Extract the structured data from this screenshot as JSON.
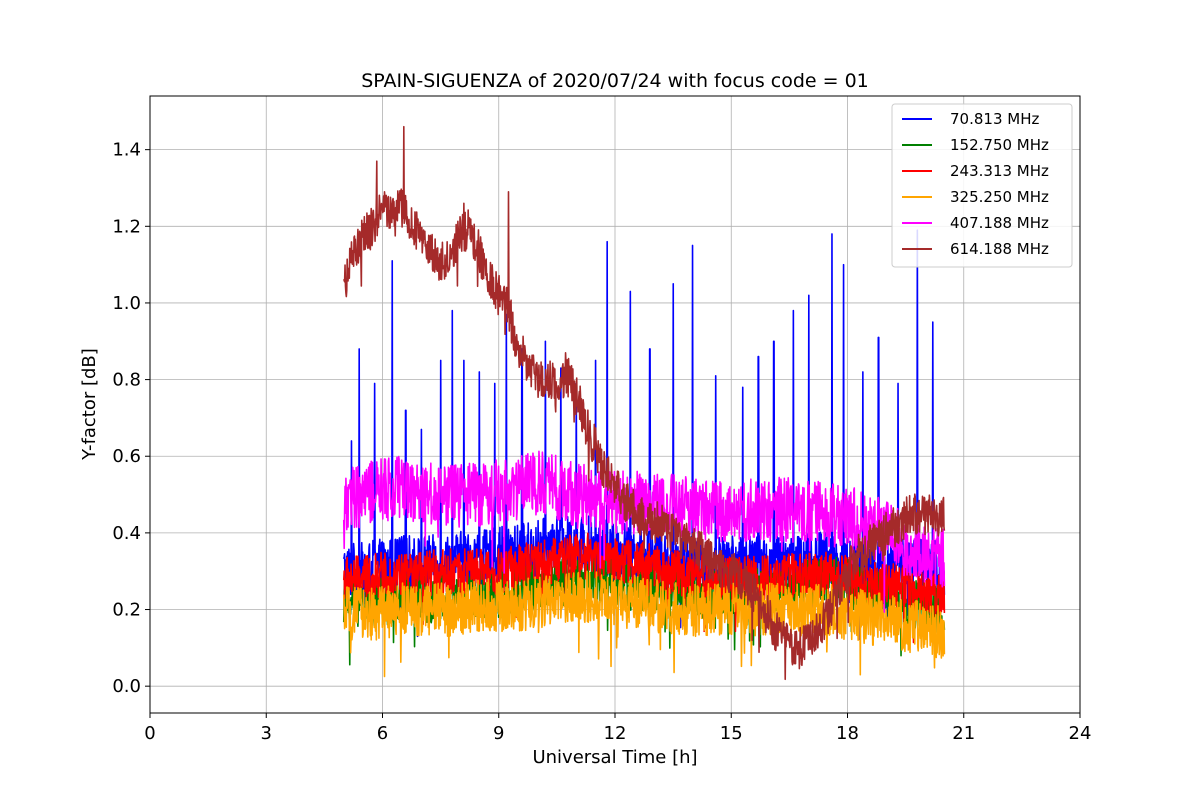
{
  "chart_data": {
    "type": "line",
    "title": "SPAIN-SIGUENZA of 2020/07/24 with focus code = 01",
    "xlabel": "Universal Time [h]",
    "ylabel": "Y-factor [dB]",
    "xlim": [
      0,
      24
    ],
    "ylim": [
      -0.07,
      1.54
    ],
    "xticks": [
      0,
      3,
      6,
      9,
      12,
      15,
      18,
      21,
      24
    ],
    "yticks": [
      0.0,
      0.2,
      0.4,
      0.6,
      0.8,
      1.0,
      1.2,
      1.4
    ],
    "xtick_labels": [
      "0",
      "3",
      "6",
      "9",
      "12",
      "15",
      "18",
      "21",
      "24"
    ],
    "ytick_labels": [
      "0.0",
      "0.2",
      "0.4",
      "0.6",
      "0.8",
      "1.0",
      "1.2",
      "1.4"
    ],
    "grid": true,
    "legend_position": "top-right",
    "series": [
      {
        "name": "70.813 MHz",
        "color": "#0000ff",
        "x": [
          5.0,
          5.5,
          6.0,
          6.5,
          7.0,
          7.5,
          8.0,
          8.5,
          9.0,
          9.5,
          10.0,
          10.5,
          11.0,
          11.5,
          12.0,
          12.5,
          13.0,
          13.5,
          14.0,
          14.5,
          15.0,
          15.5,
          16.0,
          16.5,
          17.0,
          17.5,
          18.0,
          18.5,
          19.0,
          19.5,
          20.0,
          20.5
        ],
        "y": [
          0.3,
          0.3,
          0.31,
          0.32,
          0.32,
          0.32,
          0.33,
          0.33,
          0.34,
          0.35,
          0.36,
          0.37,
          0.37,
          0.37,
          0.36,
          0.35,
          0.34,
          0.33,
          0.33,
          0.32,
          0.32,
          0.32,
          0.32,
          0.33,
          0.33,
          0.33,
          0.32,
          0.31,
          0.31,
          0.32,
          0.32,
          0.3
        ],
        "spikes": [
          [
            5.2,
            0.64
          ],
          [
            5.4,
            0.88
          ],
          [
            5.8,
            0.79
          ],
          [
            6.25,
            1.11
          ],
          [
            6.6,
            0.72
          ],
          [
            7.0,
            0.67
          ],
          [
            7.5,
            0.85
          ],
          [
            7.8,
            0.98
          ],
          [
            8.1,
            0.85
          ],
          [
            8.5,
            0.82
          ],
          [
            8.9,
            0.79
          ],
          [
            9.2,
            0.97
          ],
          [
            9.6,
            0.88
          ],
          [
            10.2,
            0.9
          ],
          [
            10.6,
            0.83
          ],
          [
            11.0,
            0.79
          ],
          [
            11.5,
            0.85
          ],
          [
            11.8,
            1.16
          ],
          [
            12.4,
            1.03
          ],
          [
            12.9,
            0.88
          ],
          [
            13.5,
            1.05
          ],
          [
            14.0,
            1.15
          ],
          [
            14.6,
            0.81
          ],
          [
            15.3,
            0.78
          ],
          [
            15.7,
            0.86
          ],
          [
            16.1,
            0.9
          ],
          [
            16.6,
            0.98
          ],
          [
            17.0,
            1.02
          ],
          [
            17.6,
            1.18
          ],
          [
            17.9,
            1.1
          ],
          [
            18.4,
            0.82
          ],
          [
            18.8,
            0.91
          ],
          [
            19.3,
            0.79
          ],
          [
            19.8,
            1.19
          ],
          [
            20.2,
            0.95
          ]
        ]
      },
      {
        "name": "152.750 MHz",
        "color": "#008000",
        "x": [
          5.0,
          5.5,
          6.0,
          6.5,
          7.0,
          7.5,
          8.0,
          8.5,
          9.0,
          9.5,
          10.0,
          10.5,
          11.0,
          11.5,
          12.0,
          12.5,
          13.0,
          13.5,
          14.0,
          14.5,
          15.0,
          15.5,
          16.0,
          16.5,
          17.0,
          17.5,
          18.0,
          18.5,
          19.0,
          19.5,
          20.0,
          20.5
        ],
        "y": [
          0.22,
          0.22,
          0.22,
          0.23,
          0.23,
          0.23,
          0.24,
          0.24,
          0.24,
          0.25,
          0.26,
          0.27,
          0.28,
          0.28,
          0.27,
          0.26,
          0.25,
          0.25,
          0.24,
          0.24,
          0.24,
          0.24,
          0.25,
          0.26,
          0.27,
          0.28,
          0.27,
          0.25,
          0.23,
          0.22,
          0.21,
          0.2
        ]
      },
      {
        "name": "243.313 MHz",
        "color": "#ff0000",
        "x": [
          5.0,
          5.5,
          6.0,
          6.5,
          7.0,
          7.5,
          8.0,
          8.5,
          9.0,
          9.5,
          10.0,
          10.5,
          11.0,
          11.5,
          12.0,
          12.5,
          13.0,
          13.5,
          14.0,
          14.5,
          15.0,
          15.5,
          16.0,
          16.5,
          17.0,
          17.5,
          18.0,
          18.5,
          19.0,
          19.5,
          20.0,
          20.5
        ],
        "y": [
          0.28,
          0.28,
          0.29,
          0.29,
          0.29,
          0.3,
          0.3,
          0.3,
          0.3,
          0.31,
          0.32,
          0.33,
          0.34,
          0.34,
          0.33,
          0.32,
          0.31,
          0.3,
          0.29,
          0.28,
          0.28,
          0.28,
          0.28,
          0.29,
          0.29,
          0.29,
          0.28,
          0.27,
          0.26,
          0.26,
          0.25,
          0.24
        ]
      },
      {
        "name": "325.250 MHz",
        "color": "#ffa500",
        "x": [
          5.0,
          5.5,
          6.0,
          6.5,
          7.0,
          7.5,
          8.0,
          8.5,
          9.0,
          9.5,
          10.0,
          10.5,
          11.0,
          11.5,
          12.0,
          12.5,
          13.0,
          13.5,
          14.0,
          14.5,
          15.0,
          15.5,
          16.0,
          16.5,
          17.0,
          17.5,
          18.0,
          18.5,
          19.0,
          19.5,
          20.0,
          20.5
        ],
        "y": [
          0.19,
          0.19,
          0.19,
          0.2,
          0.2,
          0.2,
          0.2,
          0.21,
          0.21,
          0.21,
          0.22,
          0.22,
          0.23,
          0.23,
          0.22,
          0.22,
          0.21,
          0.2,
          0.2,
          0.2,
          0.2,
          0.2,
          0.2,
          0.2,
          0.2,
          0.2,
          0.19,
          0.18,
          0.17,
          0.16,
          0.15,
          0.14
        ]
      },
      {
        "name": "407.188 MHz",
        "color": "#ff00ff",
        "x": [
          5.0,
          5.5,
          6.0,
          6.5,
          7.0,
          7.5,
          8.0,
          8.5,
          9.0,
          9.5,
          10.0,
          10.5,
          11.0,
          11.5,
          12.0,
          12.5,
          13.0,
          13.5,
          14.0,
          14.5,
          15.0,
          15.5,
          16.0,
          16.5,
          17.0,
          17.5,
          18.0,
          18.5,
          19.0,
          19.5,
          20.0,
          20.5
        ],
        "y": [
          0.48,
          0.5,
          0.51,
          0.52,
          0.51,
          0.5,
          0.5,
          0.5,
          0.51,
          0.52,
          0.53,
          0.52,
          0.5,
          0.49,
          0.48,
          0.48,
          0.47,
          0.47,
          0.47,
          0.46,
          0.46,
          0.46,
          0.46,
          0.46,
          0.46,
          0.45,
          0.44,
          0.42,
          0.4,
          0.37,
          0.35,
          0.33
        ]
      },
      {
        "name": "614.188 MHz",
        "color": "#a52a2a",
        "x": [
          5.0,
          5.25,
          5.5,
          5.75,
          6.0,
          6.25,
          6.5,
          6.75,
          7.0,
          7.25,
          7.5,
          7.75,
          8.0,
          8.25,
          8.5,
          8.75,
          9.0,
          9.25,
          9.5,
          9.75,
          10.0,
          10.25,
          10.5,
          10.75,
          11.0,
          11.25,
          11.5,
          11.75,
          12.0,
          12.25,
          12.5,
          12.75,
          13.0,
          13.25,
          13.5,
          13.75,
          14.0,
          14.25,
          14.5,
          14.75,
          15.0,
          15.25,
          15.5,
          15.75,
          16.0,
          16.25,
          16.5,
          16.75,
          17.0,
          17.25,
          17.5,
          17.75,
          18.0,
          18.25,
          18.5,
          18.75,
          19.0,
          19.25,
          19.5,
          19.75,
          20.0,
          20.25,
          20.5
        ],
        "y": [
          1.05,
          1.12,
          1.17,
          1.2,
          1.26,
          1.22,
          1.25,
          1.2,
          1.17,
          1.13,
          1.1,
          1.12,
          1.17,
          1.2,
          1.13,
          1.07,
          1.02,
          0.98,
          0.88,
          0.84,
          0.8,
          0.8,
          0.78,
          0.82,
          0.76,
          0.68,
          0.62,
          0.56,
          0.52,
          0.48,
          0.46,
          0.44,
          0.43,
          0.42,
          0.4,
          0.38,
          0.36,
          0.35,
          0.32,
          0.3,
          0.3,
          0.28,
          0.26,
          0.22,
          0.17,
          0.13,
          0.1,
          0.1,
          0.12,
          0.15,
          0.18,
          0.24,
          0.3,
          0.34,
          0.36,
          0.38,
          0.4,
          0.42,
          0.44,
          0.45,
          0.45,
          0.44,
          0.45
        ],
        "spikes": [
          [
            6.55,
            1.46
          ],
          [
            9.25,
            1.29
          ],
          [
            5.85,
            1.37
          ],
          [
            8.1,
            1.26
          ]
        ]
      }
    ]
  }
}
